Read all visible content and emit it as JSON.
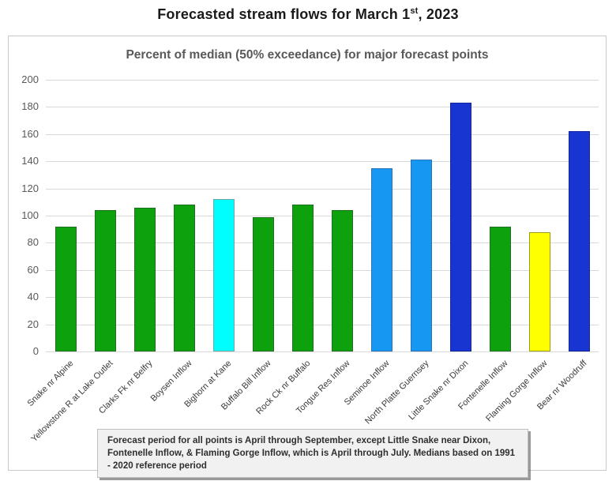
{
  "page_title": {
    "prefix": "Forecasted stream flows for March 1",
    "superscript": "st",
    "suffix": ", 2023"
  },
  "chart_data": {
    "type": "bar",
    "title": "Percent of median (50% exceedance) for major forecast points",
    "categories": [
      "Snake nr Alpine",
      "Yellowstone R at Lake Outlet",
      "Clarks Fk nr Belfry",
      "Boysen Inflow",
      "Bighorn at Kane",
      "Buffalo Bill Inflow",
      "Rock Ck nr Buffalo",
      "Tongue Res Inflow",
      "Seminoe Inflow",
      "North Platte Guernsey",
      "Little Snake nr Dixon",
      "Fontenelle Inflow",
      "Flaming Gorge Inflow",
      "Bear nr Woodruff"
    ],
    "values": [
      92,
      104,
      106,
      108,
      112,
      99,
      108,
      104,
      135,
      141,
      183,
      92,
      88,
      162
    ],
    "color_keys": [
      "green",
      "green",
      "green",
      "green",
      "cyan",
      "green",
      "green",
      "green",
      "light_blue",
      "light_blue",
      "dark_blue",
      "green",
      "yellow",
      "dark_blue"
    ],
    "palette": {
      "green": {
        "fill": "#0da10d",
        "border": "#1f6f1f"
      },
      "cyan": {
        "fill": "#00feff",
        "border": "#6fa8a8"
      },
      "light_blue": {
        "fill": "#1697f2",
        "border": "#2d72b8"
      },
      "dark_blue": {
        "fill": "#1834d1",
        "border": "#16279c"
      },
      "yellow": {
        "fill": "#feff00",
        "border": "#9c9c1c"
      }
    },
    "ylim": [
      0,
      200
    ],
    "ytick_step": 20,
    "yticks": [
      0,
      20,
      40,
      60,
      80,
      100,
      120,
      140,
      160,
      180,
      200
    ],
    "xlabel": "",
    "ylabel": "",
    "grid": true,
    "legend": "none",
    "footnote": "Forecast period for all points is April through September, except Little Snake near Dixon, Fontenelle Inflow, & Flaming Gorge Inflow, which is April through July. Medians based on 1991 - 2020 reference period"
  }
}
